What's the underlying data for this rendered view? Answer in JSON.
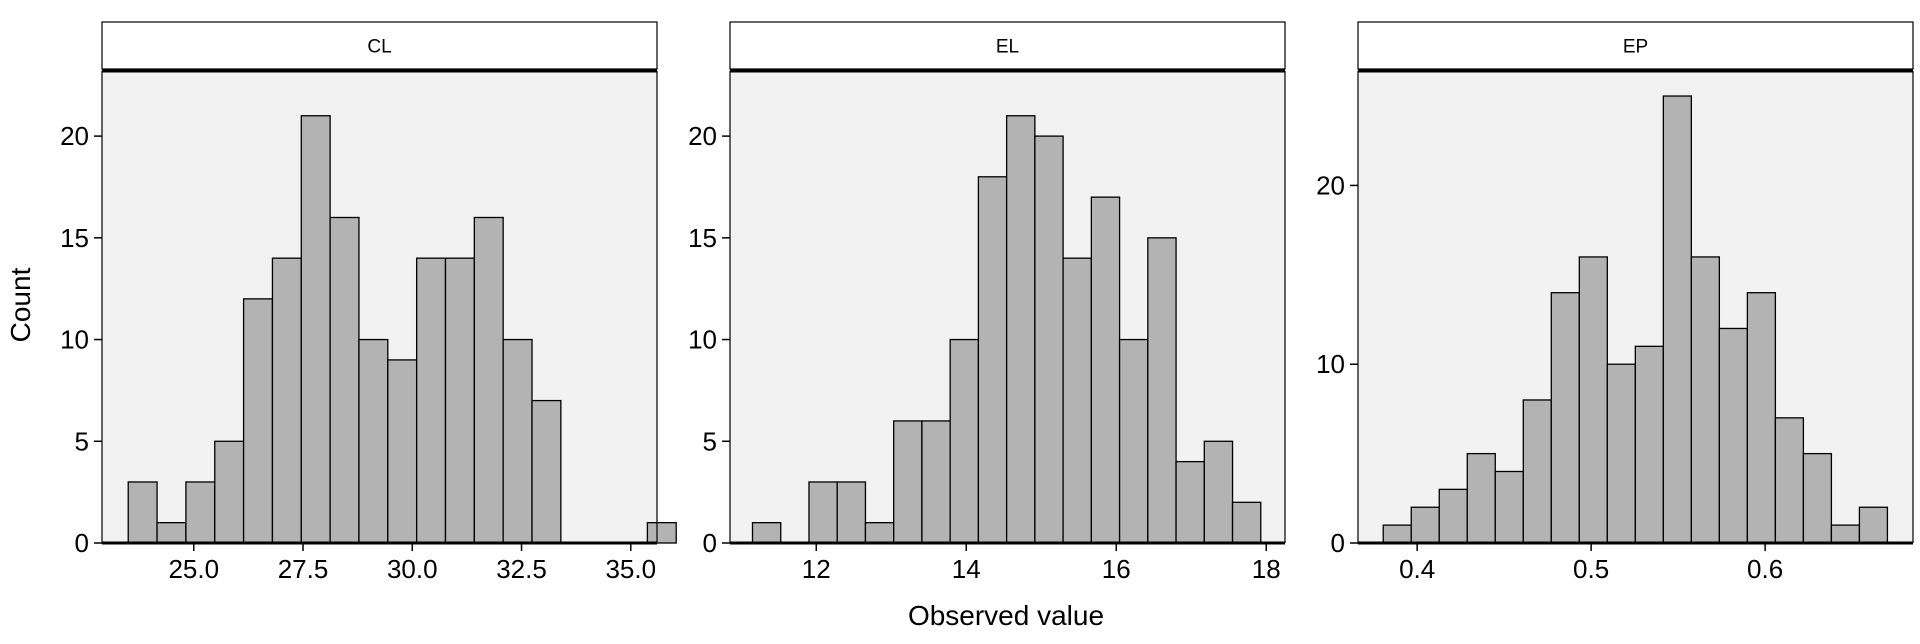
{
  "chart_data": {
    "type": "bar",
    "xlabel": "Observed value",
    "ylabel": "Count",
    "colors": {
      "bar": "#b3b3b3",
      "panel": "#f2f2f2",
      "outline": "#000000"
    },
    "grid": false,
    "legend": "none",
    "panels": [
      {
        "title": "CL",
        "xlim": [
          22.9,
          35.6
        ],
        "ylim": [
          0,
          23.2
        ],
        "xticks": [
          25.0,
          27.5,
          30.0,
          32.5,
          35.0
        ],
        "xtick_labels": [
          "25.0",
          "27.5",
          "30.0",
          "32.5",
          "35.0"
        ],
        "yticks": [
          0,
          5,
          10,
          15,
          20
        ],
        "ytick_labels": [
          "0",
          "5",
          "10",
          "15",
          "20"
        ],
        "bin_start": 23.5,
        "bin_width": 0.66,
        "values": [
          3,
          1,
          3,
          5,
          12,
          14,
          21,
          16,
          10,
          9,
          14,
          14,
          16,
          10,
          7,
          0,
          0,
          0,
          1
        ]
      },
      {
        "title": "EL",
        "xlim": [
          10.85,
          18.25
        ],
        "ylim": [
          0,
          23.2
        ],
        "xticks": [
          12,
          14,
          16,
          18
        ],
        "xtick_labels": [
          "12",
          "14",
          "16",
          "18"
        ],
        "yticks": [
          0,
          5,
          10,
          15,
          20
        ],
        "ytick_labels": [
          "0",
          "5",
          "10",
          "15",
          "20"
        ],
        "bin_start": 11.15,
        "bin_width": 0.3765,
        "values": [
          1,
          0,
          3,
          3,
          1,
          6,
          6,
          10,
          18,
          21,
          20,
          14,
          17,
          10,
          15,
          4,
          5,
          2
        ]
      },
      {
        "title": "EP",
        "xlim": [
          0.366,
          0.685
        ],
        "ylim": [
          0,
          26.4
        ],
        "xticks": [
          0.4,
          0.5,
          0.6
        ],
        "xtick_labels": [
          "0.4",
          "0.5",
          "0.6"
        ],
        "yticks": [
          0,
          10,
          20
        ],
        "ytick_labels": [
          "0",
          "10",
          "20"
        ],
        "bin_start": 0.3805,
        "bin_width": 0.0161,
        "values": [
          1,
          2,
          3,
          5,
          4,
          8,
          14,
          16,
          10,
          11,
          25,
          16,
          12,
          14,
          7,
          5,
          1,
          2
        ]
      }
    ]
  }
}
